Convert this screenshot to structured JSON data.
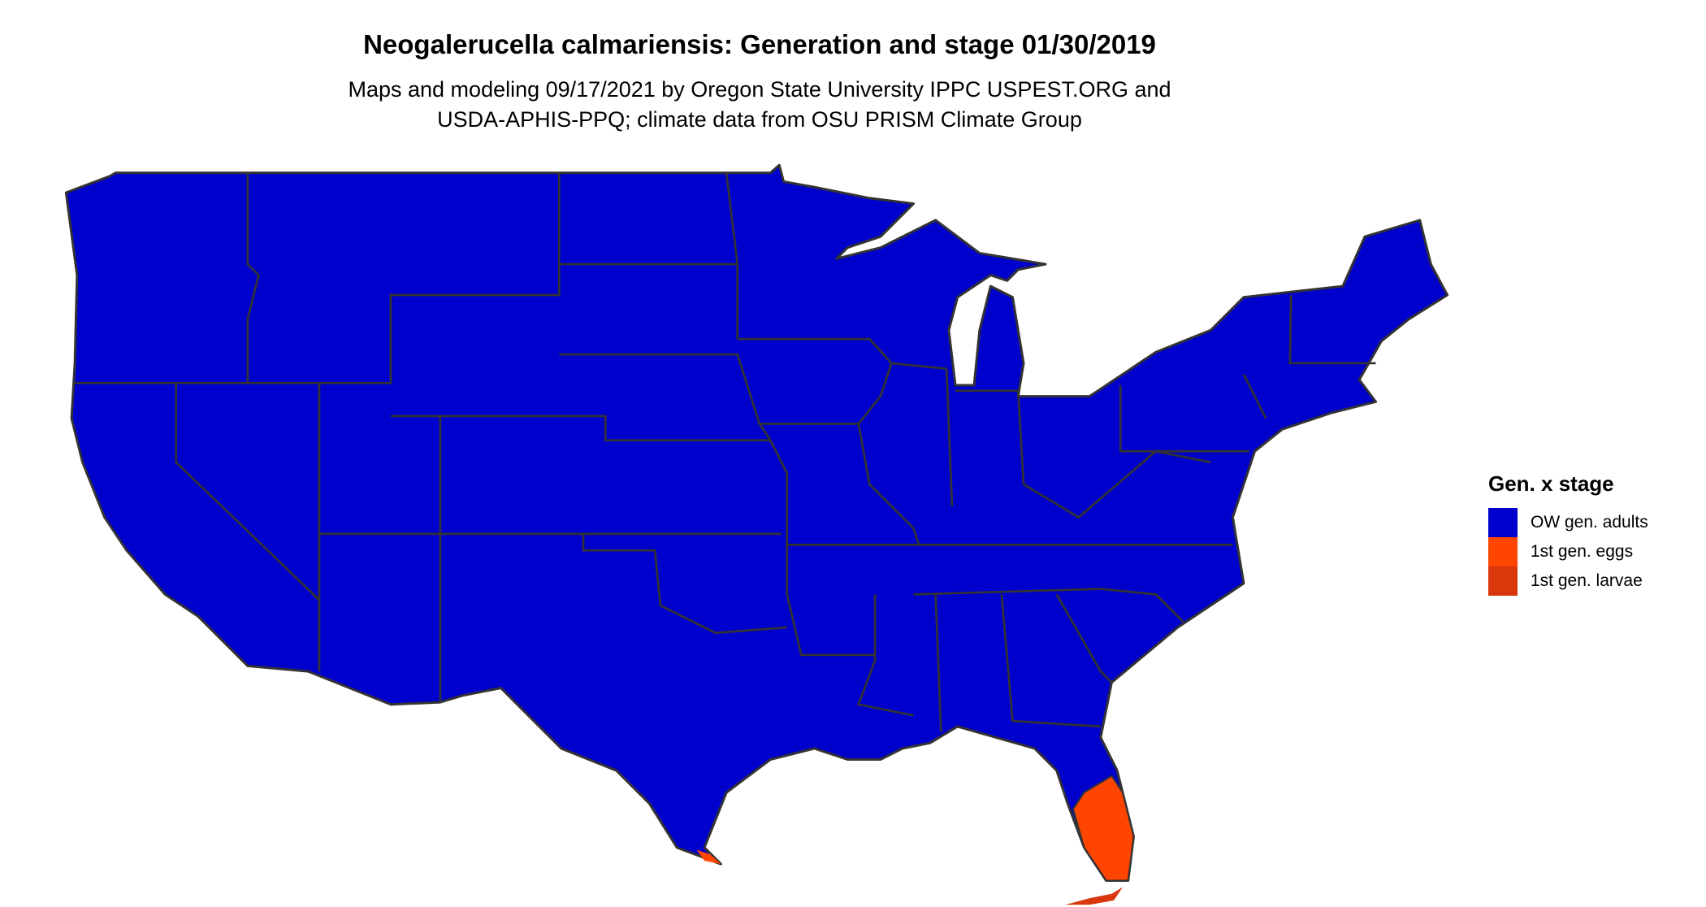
{
  "title": "Neogalerucella calmariensis: Generation and stage 01/30/2019",
  "subtitle_lines": [
    "Maps and modeling 09/17/2021 by Oregon State University IPPC USPEST.ORG and",
    "USDA-APHIS-PPQ; climate data from OSU PRISM Climate Group"
  ],
  "legend": {
    "title": "Gen. x stage",
    "items": [
      {
        "label": "OW gen. adults",
        "color": "#0000CD"
      },
      {
        "label": "1st gen. eggs",
        "color": "#FF4500"
      },
      {
        "label": "1st gen. larvae",
        "color": "#D9380C"
      }
    ]
  },
  "map": {
    "region": "Contiguous United States",
    "border_color": "#333333",
    "dominant_category": "OW gen. adults",
    "other_areas": [
      {
        "area": "South Florida",
        "category": "1st gen. eggs"
      },
      {
        "area": "Southern tip of Texas",
        "category": "1st gen. eggs"
      },
      {
        "area": "Florida Keys",
        "category": "1st gen. larvae"
      }
    ]
  }
}
